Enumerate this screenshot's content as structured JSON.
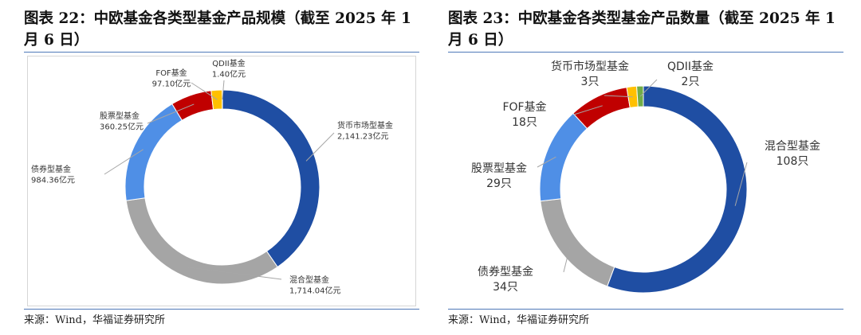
{
  "charts": [
    {
      "title": "图表 22：中欧基金各类型基金产品规模（截至 2025 年 1 月 6 日）",
      "source": "来源：Wind，华福证券研究所",
      "chart_data": {
        "type": "pie",
        "subtype": "donut",
        "unit": "亿元",
        "series": [
          {
            "name": "货币市场型基金",
            "value": 2141.23,
            "label": "2,141.23亿元",
            "color": "#1f4ea3"
          },
          {
            "name": "混合型基金",
            "value": 1714.04,
            "label": "1,714.04亿元",
            "color": "#a5a5a5"
          },
          {
            "name": "债券型基金",
            "value": 984.36,
            "label": "984.36亿元",
            "color": "#4f8fe6"
          },
          {
            "name": "股票型基金",
            "value": 360.25,
            "label": "360.25亿元",
            "color": "#c00000"
          },
          {
            "name": "FOF基金",
            "value": 97.1,
            "label": "97.10亿元",
            "color": "#ffc000"
          },
          {
            "name": "QDII基金",
            "value": 1.4,
            "label": "1.40亿元",
            "color": "#70ad47"
          }
        ]
      }
    },
    {
      "title": "图表 23：中欧基金各类型基金产品数量（截至 2025 年 1 月 6 日）",
      "source": "来源：Wind，华福证券研究所",
      "chart_data": {
        "type": "pie",
        "subtype": "donut",
        "unit": "只",
        "series": [
          {
            "name": "混合型基金",
            "value": 108,
            "label": "108只",
            "color": "#1f4ea3"
          },
          {
            "name": "债券型基金",
            "value": 34,
            "label": "34只",
            "color": "#a5a5a5"
          },
          {
            "name": "股票型基金",
            "value": 29,
            "label": "29只",
            "color": "#4f8fe6"
          },
          {
            "name": "FOF基金",
            "value": 18,
            "label": "18只",
            "color": "#c00000"
          },
          {
            "name": "货币市场型基金",
            "value": 3,
            "label": "3只",
            "color": "#ffc000"
          },
          {
            "name": "QDII基金",
            "value": 2,
            "label": "2只",
            "color": "#70ad47"
          }
        ]
      }
    }
  ]
}
